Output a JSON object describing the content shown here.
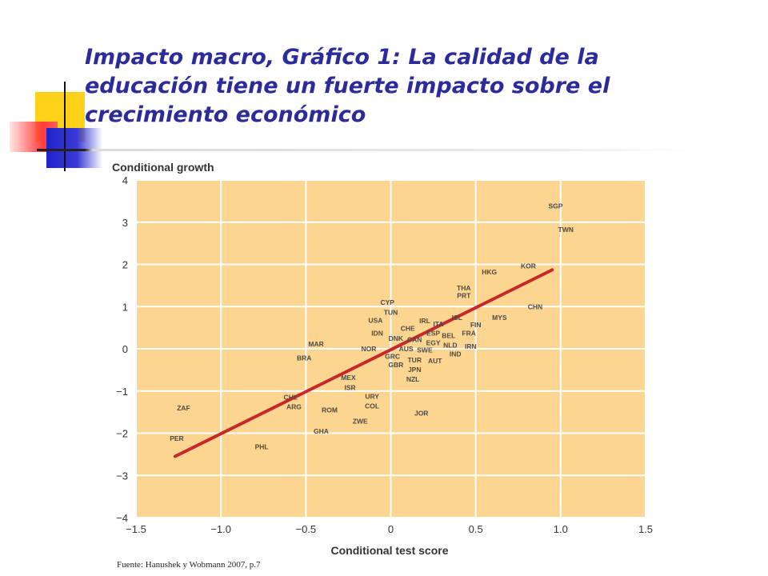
{
  "slide": {
    "title": "Impacto macro, Gráfico 1: La calidad de la educación tiene un fuerte impacto sobre el crecimiento económico",
    "source": "Fuente: Hanushek y Wobmann 2007, p.7"
  },
  "colors": {
    "title": "#2b2b9c",
    "plot_background": "#fcd690",
    "gridline": "#ffffff",
    "fit_line": "#c8282a",
    "point_label": "#4a4a4a"
  },
  "chart_data": {
    "type": "scatter",
    "title": "",
    "xlabel": "Conditional test score",
    "ylabel": "Conditional growth",
    "xlim": [
      -1.5,
      1.5
    ],
    "ylim": [
      -4,
      4
    ],
    "xticks": [
      -1.5,
      -1.0,
      -0.5,
      0,
      0.5,
      1.0,
      1.5
    ],
    "xtick_labels": [
      "−1.5",
      "−1.0",
      "−0.5",
      "0",
      "0.5",
      "1.0",
      "1.5"
    ],
    "yticks": [
      4,
      3,
      2,
      1,
      0,
      -1,
      -2,
      -3,
      -4
    ],
    "ytick_labels": [
      "4",
      "3",
      "2",
      "1",
      "0",
      "−1",
      "−2",
      "−3",
      "−4"
    ],
    "grid": true,
    "fit_line": [
      [
        -1.27,
        -2.55
      ],
      [
        0.95,
        1.87
      ]
    ],
    "points": [
      {
        "label": "SGP",
        "x": 0.97,
        "y": 3.38
      },
      {
        "label": "TWN",
        "x": 1.03,
        "y": 2.82
      },
      {
        "label": "KOR",
        "x": 0.81,
        "y": 1.96
      },
      {
        "label": "HKG",
        "x": 0.58,
        "y": 1.82
      },
      {
        "label": "THA",
        "x": 0.43,
        "y": 1.44
      },
      {
        "label": "PRT",
        "x": 0.43,
        "y": 1.26
      },
      {
        "label": "CHN",
        "x": 0.85,
        "y": 1.0
      },
      {
        "label": "MYS",
        "x": 0.64,
        "y": 0.74
      },
      {
        "label": "CYP",
        "x": -0.02,
        "y": 1.1
      },
      {
        "label": "TUN",
        "x": 0.0,
        "y": 0.86
      },
      {
        "label": "USA",
        "x": -0.09,
        "y": 0.67
      },
      {
        "label": "IRL",
        "x": 0.2,
        "y": 0.66
      },
      {
        "label": "ITA",
        "x": 0.28,
        "y": 0.59
      },
      {
        "label": "ISL",
        "x": 0.39,
        "y": 0.74
      },
      {
        "label": "FIN",
        "x": 0.5,
        "y": 0.57
      },
      {
        "label": "CHE",
        "x": 0.1,
        "y": 0.48
      },
      {
        "label": "IDN",
        "x": -0.08,
        "y": 0.37
      },
      {
        "label": "ESP",
        "x": 0.25,
        "y": 0.37
      },
      {
        "label": "FRA",
        "x": 0.46,
        "y": 0.37
      },
      {
        "label": "BEL",
        "x": 0.34,
        "y": 0.31
      },
      {
        "label": "DNK",
        "x": 0.03,
        "y": 0.25
      },
      {
        "label": "CAN",
        "x": 0.14,
        "y": 0.22
      },
      {
        "label": "EGY",
        "x": 0.25,
        "y": 0.14
      },
      {
        "label": "NLD",
        "x": 0.35,
        "y": 0.09
      },
      {
        "label": "IRN",
        "x": 0.47,
        "y": 0.06
      },
      {
        "label": "MAR",
        "x": -0.44,
        "y": 0.11
      },
      {
        "label": "NOR",
        "x": -0.13,
        "y": 0.0
      },
      {
        "label": "AUS",
        "x": 0.09,
        "y": 0.0
      },
      {
        "label": "SWE",
        "x": 0.2,
        "y": -0.03
      },
      {
        "label": "IND",
        "x": 0.38,
        "y": -0.12
      },
      {
        "label": "BRA",
        "x": -0.51,
        "y": -0.22
      },
      {
        "label": "GRC",
        "x": 0.01,
        "y": -0.18
      },
      {
        "label": "TUR",
        "x": 0.14,
        "y": -0.27
      },
      {
        "label": "AUT",
        "x": 0.26,
        "y": -0.28
      },
      {
        "label": "GBR",
        "x": 0.03,
        "y": -0.38
      },
      {
        "label": "JPN",
        "x": 0.14,
        "y": -0.49
      },
      {
        "label": "NZL",
        "x": 0.13,
        "y": -0.72
      },
      {
        "label": "MEX",
        "x": -0.25,
        "y": -0.68
      },
      {
        "label": "ISR",
        "x": -0.24,
        "y": -0.92
      },
      {
        "label": "URY",
        "x": -0.11,
        "y": -1.13
      },
      {
        "label": "CHL",
        "x": -0.59,
        "y": -1.15
      },
      {
        "label": "ARG",
        "x": -0.57,
        "y": -1.37
      },
      {
        "label": "COL",
        "x": -0.11,
        "y": -1.36
      },
      {
        "label": "ROM",
        "x": -0.36,
        "y": -1.45
      },
      {
        "label": "JOR",
        "x": 0.18,
        "y": -1.53
      },
      {
        "label": "ZAF",
        "x": -1.22,
        "y": -1.4
      },
      {
        "label": "ZWE",
        "x": -0.18,
        "y": -1.72
      },
      {
        "label": "GHA",
        "x": -0.41,
        "y": -1.95
      },
      {
        "label": "PER",
        "x": -1.26,
        "y": -2.12
      },
      {
        "label": "PHL",
        "x": -0.76,
        "y": -2.32
      }
    ]
  }
}
